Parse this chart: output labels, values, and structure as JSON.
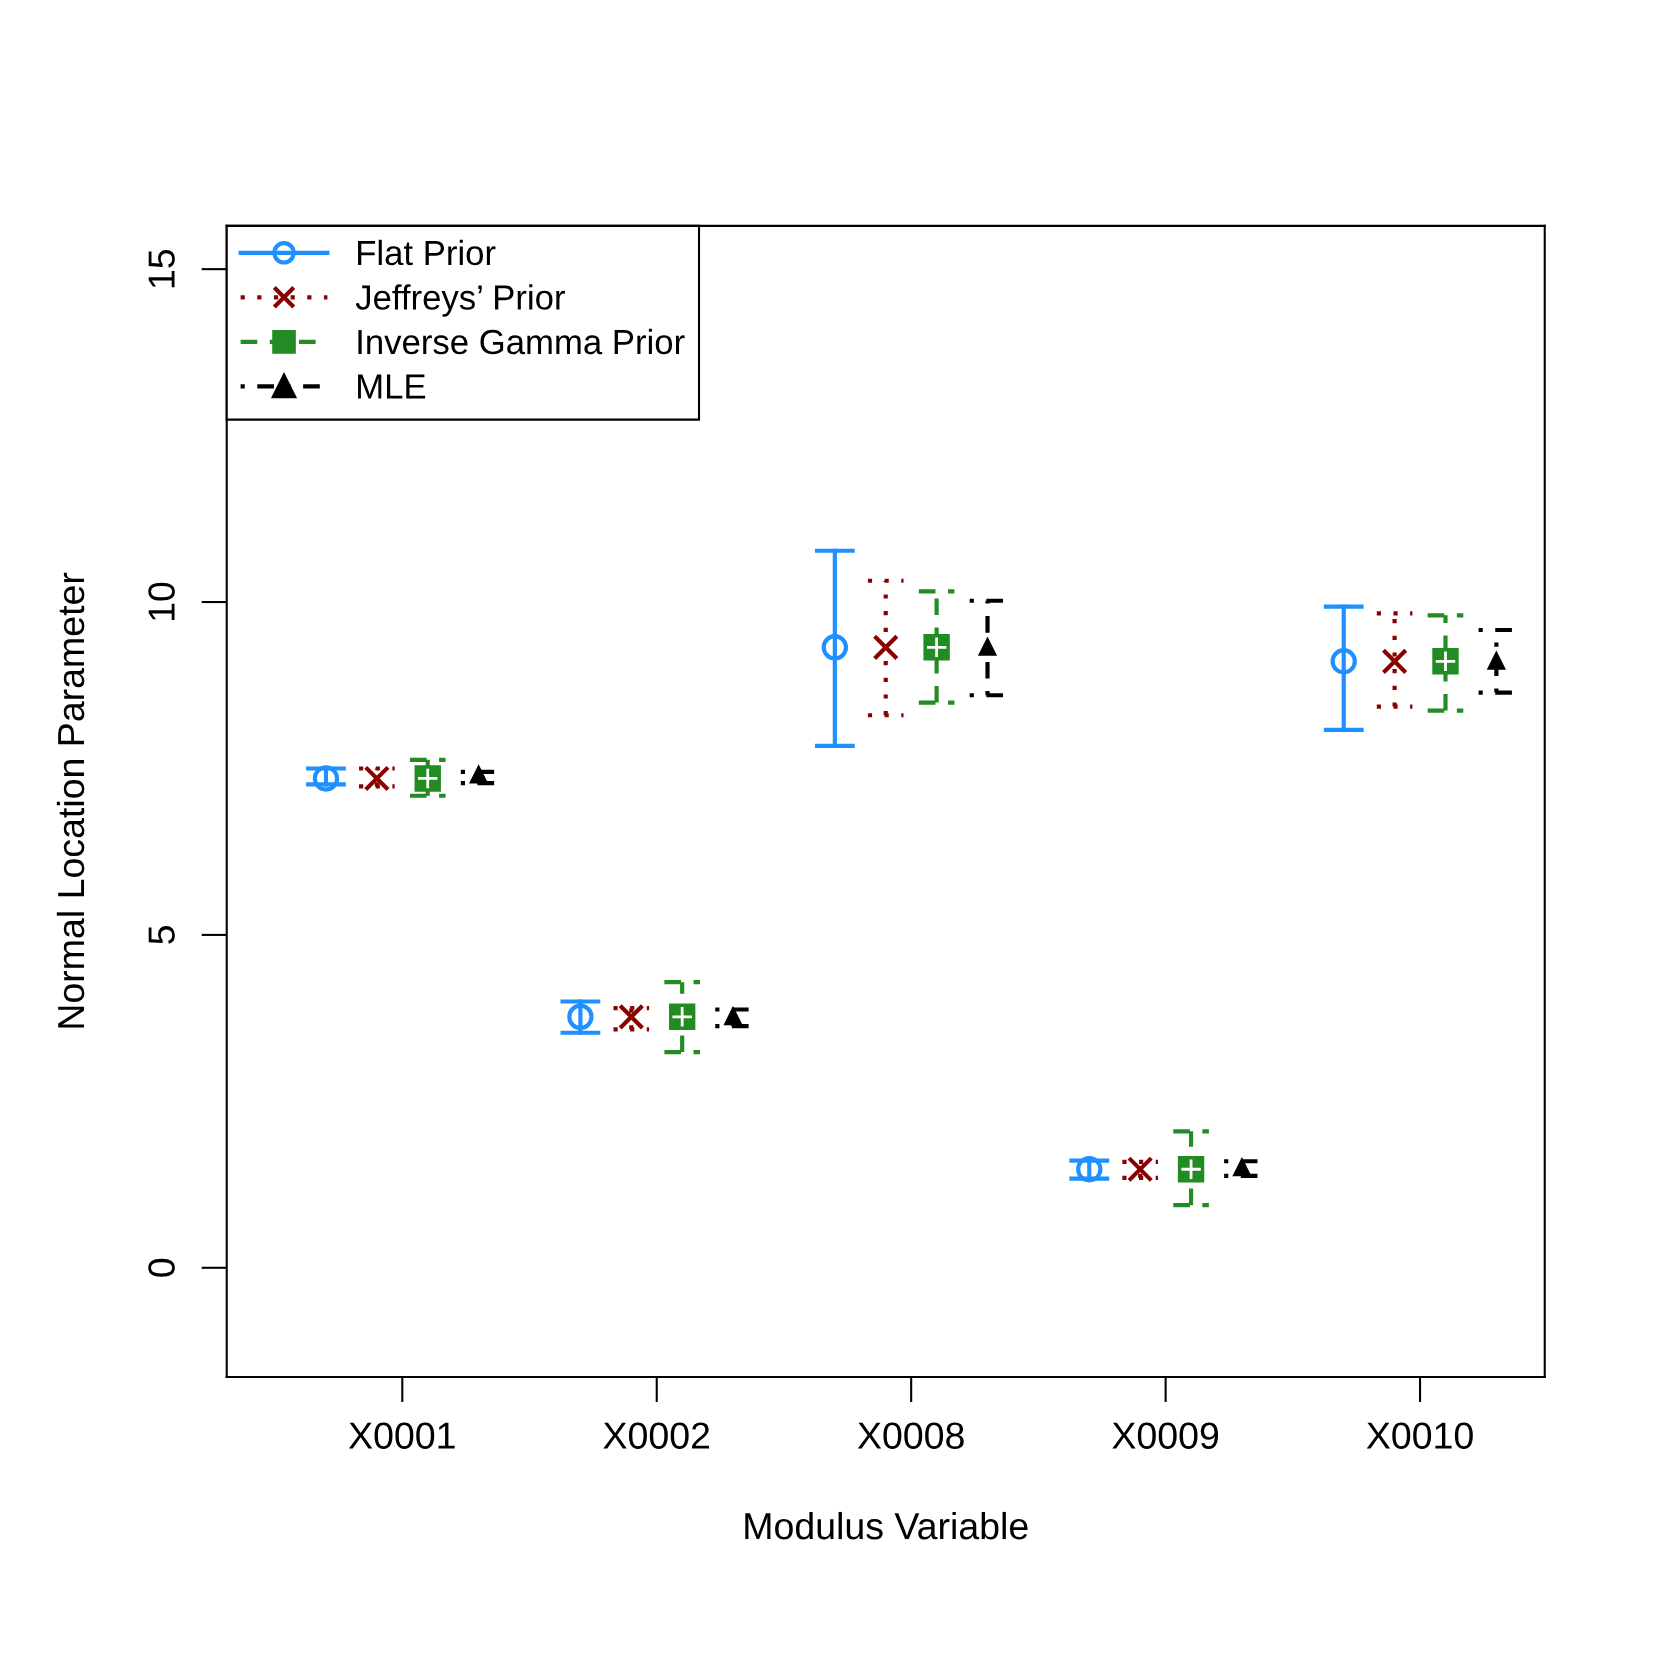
{
  "chart_data": {
    "type": "scatter",
    "xlabel": "Modulus Variable",
    "ylabel": "Normal Location Parameter",
    "categories": [
      "X0001",
      "X0002",
      "X0008",
      "X0009",
      "X0010"
    ],
    "ylim": [
      -1.64,
      15.65
    ],
    "yticks": [
      0,
      5,
      10,
      15
    ],
    "grid": false,
    "legend": "top left",
    "series": [
      {
        "name": "Flat Prior",
        "color": "#1e90ff",
        "marker": "circle",
        "line_style": "solid",
        "values": [
          7.35,
          3.77,
          9.32,
          1.48,
          9.11
        ],
        "errors": [
          [
            7.26,
            7.5
          ],
          [
            3.53,
            4.0
          ],
          [
            7.84,
            10.77
          ],
          [
            1.34,
            1.61
          ],
          [
            8.08,
            9.93
          ]
        ]
      },
      {
        "name": "Jeffreys’ Prior",
        "color": "#8b0000",
        "marker": "cross",
        "line_style": "dotted",
        "values": [
          7.35,
          3.77,
          9.32,
          1.48,
          9.11
        ],
        "errors": [
          [
            7.23,
            7.5
          ],
          [
            3.58,
            3.9
          ],
          [
            8.3,
            10.32
          ],
          [
            1.35,
            1.59
          ],
          [
            8.43,
            9.83
          ]
        ]
      },
      {
        "name": "Inverse Gamma Prior",
        "color": "#228b22",
        "marker": "square",
        "line_style": "dashed",
        "values": [
          7.35,
          3.77,
          9.32,
          1.48,
          9.11
        ],
        "errors": [
          [
            7.09,
            7.63
          ],
          [
            3.24,
            4.29
          ],
          [
            8.49,
            10.16
          ],
          [
            0.94,
            2.05
          ],
          [
            8.37,
            9.8
          ]
        ]
      },
      {
        "name": "MLE",
        "color": "#000000",
        "marker": "triangle",
        "line_style": "dashdot",
        "values": [
          7.4,
          3.77,
          9.32,
          1.5,
          9.11
        ],
        "errors": [
          [
            7.28,
            7.45
          ],
          [
            3.63,
            3.88
          ],
          [
            8.6,
            10.02
          ],
          [
            1.38,
            1.6
          ],
          [
            8.64,
            9.58
          ]
        ]
      }
    ]
  }
}
